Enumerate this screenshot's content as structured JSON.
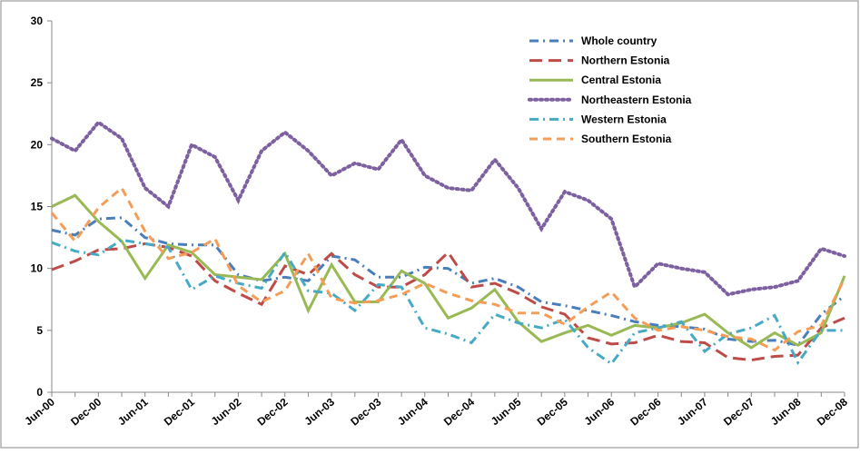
{
  "chart_data": {
    "type": "line",
    "categories": [
      "Jun-00",
      null,
      "Dec-00",
      null,
      "Jun-01",
      null,
      "Dec-01",
      null,
      "Jun-02",
      null,
      "Dec-02",
      null,
      "Jun-03",
      null,
      "Dec-03",
      null,
      "Jun-04",
      null,
      "Dec-04",
      null,
      "Jun-05",
      null,
      "Dec-05",
      null,
      "Jun-06",
      null,
      "Dec-06",
      null,
      "Jun-07",
      null,
      "Dec-07",
      null,
      "Jun-08",
      null,
      "Dec-08"
    ],
    "series": [
      {
        "name": "Whole country",
        "color": "#4a7ebb",
        "dash": "dash-dot",
        "values": [
          13.1,
          12.7,
          14,
          14.1,
          12.5,
          12,
          11.9,
          11.9,
          9.5,
          9,
          9.3,
          9,
          11,
          10.7,
          9.3,
          9.3,
          10.1,
          10,
          8.8,
          9.2,
          8.5,
          7.3,
          7,
          6.6,
          6.2,
          5.7,
          5.4,
          5.3,
          5.1,
          4.3,
          4.1,
          4.2,
          3.8,
          6.3,
          7.8
        ]
      },
      {
        "name": "Northern Estonia",
        "color": "#be4b48",
        "dash": "long-dash",
        "values": [
          9.9,
          10.6,
          11.5,
          11.6,
          12,
          11.7,
          11,
          9,
          8,
          7.1,
          10.2,
          9.5,
          11.2,
          9.5,
          8.5,
          8.5,
          9.5,
          11.3,
          8.5,
          8.8,
          8,
          6.9,
          6.3,
          4.4,
          3.9,
          4,
          4.6,
          4.1,
          4,
          2.8,
          2.6,
          2.9,
          3,
          5.2,
          6
        ]
      },
      {
        "name": "Central Estonia",
        "color": "#98b954",
        "dash": "solid",
        "values": [
          15,
          15.9,
          13.8,
          12.2,
          9.2,
          11.9,
          11.3,
          9.5,
          9.3,
          9.1,
          11.2,
          6.6,
          10.3,
          7.3,
          7.3,
          9.8,
          8.8,
          6,
          6.8,
          8.3,
          5.7,
          4.1,
          4.8,
          5.4,
          4.6,
          5.4,
          5.2,
          5.6,
          6.3,
          4.8,
          3.6,
          4.8,
          3.8,
          4.8,
          9.4
        ]
      },
      {
        "name": "Northeastern Estonia",
        "color": "#7d60a0",
        "dash": "dot",
        "values": [
          20.5,
          19.5,
          21.8,
          20.5,
          16.5,
          15,
          20,
          19,
          15.5,
          19.5,
          21,
          19.5,
          17.5,
          18.5,
          18,
          20.4,
          17.5,
          16.5,
          16.3,
          18.8,
          16.5,
          13.2,
          16.2,
          15.5,
          14,
          8.5,
          10.4,
          10,
          9.7,
          7.9,
          8.3,
          8.5,
          9,
          11.6,
          11
        ]
      },
      {
        "name": "Western Estonia",
        "color": "#46aac5",
        "dash": "dash-dot",
        "values": [
          12.1,
          11.4,
          11.1,
          12.3,
          12,
          11.7,
          8.3,
          9.4,
          8.8,
          8.4,
          11.3,
          8.2,
          8,
          6.6,
          8.7,
          8.5,
          5.2,
          4.7,
          4,
          6.3,
          5.6,
          5.2,
          5.9,
          3.6,
          2.3,
          4.8,
          5.2,
          5.7,
          3.3,
          4.7,
          5.2,
          6.2,
          2.4,
          5,
          5
        ]
      },
      {
        "name": "Southern Estonia",
        "color": "#f59d56",
        "dash": "dash",
        "values": [
          14.5,
          12.2,
          14.9,
          16.5,
          13,
          10.8,
          11.3,
          12.4,
          8.6,
          7.3,
          8.2,
          11.2,
          7.6,
          7.2,
          7.4,
          7.9,
          8.8,
          8,
          7.4,
          7.1,
          6.4,
          6.4,
          5.5,
          6.9,
          8.1,
          6,
          5,
          5.3,
          5,
          4.5,
          4.3,
          3.4,
          4.9,
          5.4,
          9.2
        ]
      }
    ],
    "ylim": [
      0,
      30
    ],
    "yticks": [
      0,
      5,
      10,
      15,
      20,
      25,
      30
    ],
    "grid": false,
    "legend": "top-right"
  }
}
